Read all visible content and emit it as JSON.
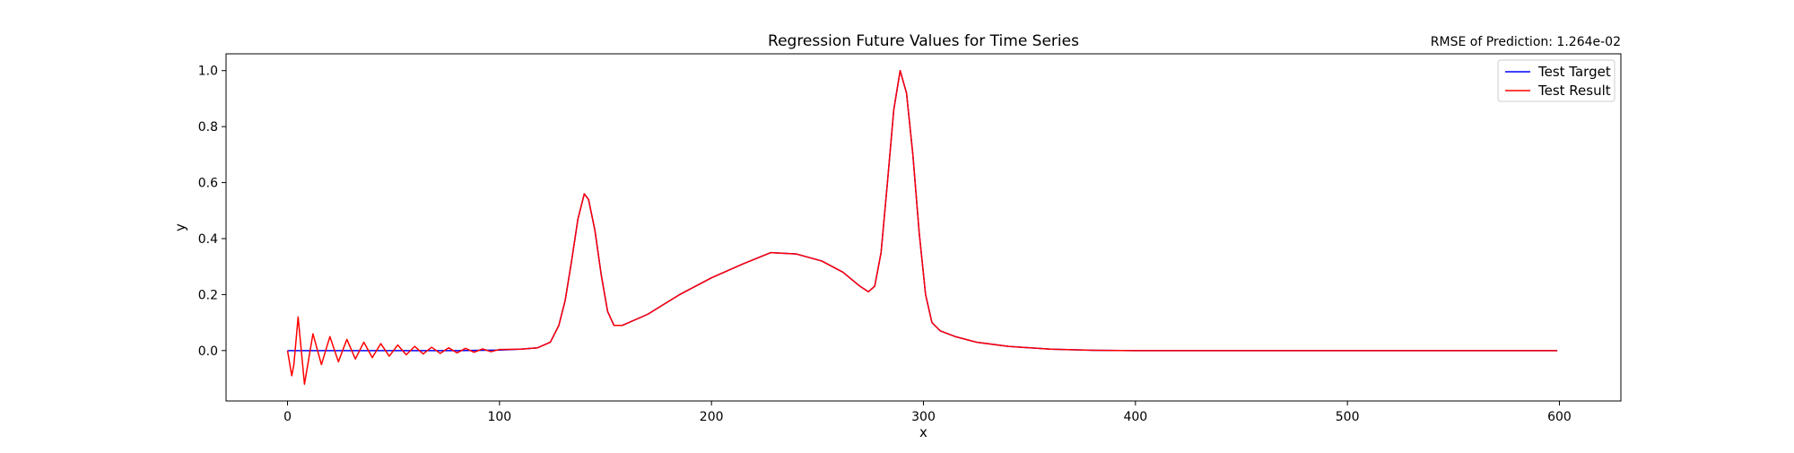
{
  "chart_data": {
    "type": "line",
    "title": "Regression Future Values for Time Series",
    "annotation": "RMSE of Prediction: 1.264e-02",
    "xlabel": "x",
    "ylabel": "y",
    "xlim": [
      -29,
      629
    ],
    "ylim": [
      -0.18,
      1.06
    ],
    "xticks": [
      0,
      100,
      200,
      300,
      400,
      500,
      600
    ],
    "xtick_labels": [
      "0",
      "100",
      "200",
      "300",
      "400",
      "500",
      "600"
    ],
    "yticks": [
      0.0,
      0.2,
      0.4,
      0.6,
      0.8,
      1.0
    ],
    "ytick_labels": [
      "0.0",
      "0.2",
      "0.4",
      "0.6",
      "0.8",
      "1.0"
    ],
    "grid": false,
    "legend_position": "top-right",
    "series": [
      {
        "name": "Test Target",
        "color": "#0000ff",
        "points": [
          [
            0,
            0
          ],
          [
            20,
            0
          ],
          [
            40,
            0
          ],
          [
            60,
            0
          ],
          [
            80,
            0
          ],
          [
            100,
            0.002
          ],
          [
            110,
            0.005
          ],
          [
            118,
            0.01
          ],
          [
            124,
            0.03
          ],
          [
            128,
            0.09
          ],
          [
            131,
            0.18
          ],
          [
            134,
            0.32
          ],
          [
            137,
            0.47
          ],
          [
            140,
            0.56
          ],
          [
            142,
            0.54
          ],
          [
            145,
            0.43
          ],
          [
            148,
            0.27
          ],
          [
            151,
            0.14
          ],
          [
            154,
            0.09
          ],
          [
            158,
            0.09
          ],
          [
            170,
            0.13
          ],
          [
            185,
            0.2
          ],
          [
            200,
            0.26
          ],
          [
            215,
            0.31
          ],
          [
            228,
            0.35
          ],
          [
            240,
            0.345
          ],
          [
            252,
            0.32
          ],
          [
            262,
            0.28
          ],
          [
            270,
            0.23
          ],
          [
            274,
            0.21
          ],
          [
            277,
            0.23
          ],
          [
            280,
            0.35
          ],
          [
            283,
            0.6
          ],
          [
            286,
            0.86
          ],
          [
            289,
            1.0
          ],
          [
            292,
            0.92
          ],
          [
            295,
            0.7
          ],
          [
            298,
            0.42
          ],
          [
            301,
            0.2
          ],
          [
            304,
            0.1
          ],
          [
            308,
            0.07
          ],
          [
            315,
            0.05
          ],
          [
            325,
            0.03
          ],
          [
            340,
            0.015
          ],
          [
            360,
            0.005
          ],
          [
            380,
            0.001
          ],
          [
            400,
            0
          ],
          [
            450,
            0
          ],
          [
            500,
            0
          ],
          [
            550,
            0
          ],
          [
            599,
            0
          ]
        ]
      },
      {
        "name": "Test Result",
        "color": "#ff0000",
        "points": [
          [
            0,
            0
          ],
          [
            2,
            -0.09
          ],
          [
            3,
            -0.05
          ],
          [
            5,
            0.12
          ],
          [
            8,
            -0.12
          ],
          [
            12,
            0.06
          ],
          [
            16,
            -0.05
          ],
          [
            20,
            0.05
          ],
          [
            24,
            -0.04
          ],
          [
            28,
            0.04
          ],
          [
            32,
            -0.03
          ],
          [
            36,
            0.03
          ],
          [
            40,
            -0.025
          ],
          [
            44,
            0.025
          ],
          [
            48,
            -0.02
          ],
          [
            52,
            0.02
          ],
          [
            56,
            -0.015
          ],
          [
            60,
            0.015
          ],
          [
            64,
            -0.012
          ],
          [
            68,
            0.012
          ],
          [
            72,
            -0.01
          ],
          [
            76,
            0.01
          ],
          [
            80,
            -0.008
          ],
          [
            84,
            0.008
          ],
          [
            88,
            -0.006
          ],
          [
            92,
            0.006
          ],
          [
            96,
            -0.004
          ],
          [
            100,
            0.004
          ],
          [
            110,
            0.005
          ],
          [
            118,
            0.01
          ],
          [
            124,
            0.03
          ],
          [
            128,
            0.09
          ],
          [
            131,
            0.18
          ],
          [
            134,
            0.32
          ],
          [
            137,
            0.47
          ],
          [
            140,
            0.56
          ],
          [
            142,
            0.54
          ],
          [
            145,
            0.43
          ],
          [
            148,
            0.27
          ],
          [
            151,
            0.14
          ],
          [
            154,
            0.09
          ],
          [
            158,
            0.09
          ],
          [
            170,
            0.13
          ],
          [
            185,
            0.2
          ],
          [
            200,
            0.26
          ],
          [
            215,
            0.31
          ],
          [
            228,
            0.35
          ],
          [
            240,
            0.345
          ],
          [
            252,
            0.32
          ],
          [
            262,
            0.28
          ],
          [
            270,
            0.23
          ],
          [
            274,
            0.21
          ],
          [
            277,
            0.23
          ],
          [
            280,
            0.35
          ],
          [
            283,
            0.6
          ],
          [
            286,
            0.86
          ],
          [
            289,
            1.0
          ],
          [
            292,
            0.92
          ],
          [
            295,
            0.7
          ],
          [
            298,
            0.42
          ],
          [
            301,
            0.2
          ],
          [
            304,
            0.1
          ],
          [
            308,
            0.07
          ],
          [
            315,
            0.05
          ],
          [
            325,
            0.03
          ],
          [
            340,
            0.015
          ],
          [
            360,
            0.005
          ],
          [
            380,
            0.001
          ],
          [
            400,
            0
          ],
          [
            450,
            0
          ],
          [
            500,
            0
          ],
          [
            550,
            0
          ],
          [
            599,
            0
          ]
        ]
      }
    ]
  }
}
